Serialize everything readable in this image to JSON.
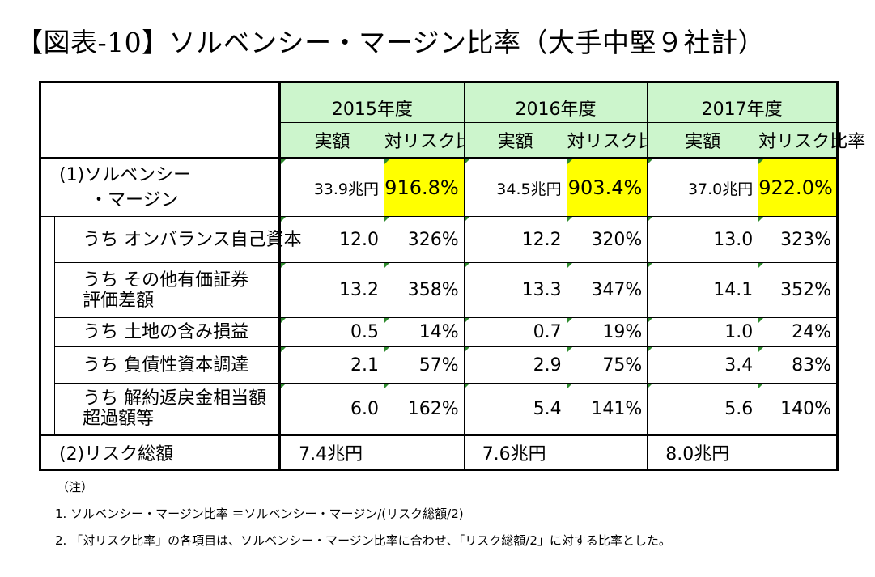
{
  "title": "【図表-10】ソルベンシー・マージン比率（大手中堅９社計）",
  "table": {
    "years": [
      "2015年度",
      "2016年度",
      "2017年度"
    ],
    "sub_headers": {
      "amount": "実額",
      "ratio": "対リスク比率"
    },
    "sm_row": {
      "label_line1": "(1)ソルベンシー",
      "label_line2": "・マージン",
      "values": [
        {
          "amount": "33.9兆円",
          "ratio": "916.8%"
        },
        {
          "amount": "34.5兆円",
          "ratio": "903.4%"
        },
        {
          "amount": "37.0兆円",
          "ratio": "922.0%"
        }
      ]
    },
    "sub_rows": [
      {
        "label_line1": "うち オンバランス自己資本",
        "label_line2": "",
        "values": [
          {
            "amount": "12.0",
            "ratio": "326%"
          },
          {
            "amount": "12.2",
            "ratio": "320%"
          },
          {
            "amount": "13.0",
            "ratio": "323%"
          }
        ]
      },
      {
        "label_line1": "うち その他有価証券",
        "label_line2": "評価差額",
        "values": [
          {
            "amount": "13.2",
            "ratio": "358%"
          },
          {
            "amount": "13.3",
            "ratio": "347%"
          },
          {
            "amount": "14.1",
            "ratio": "352%"
          }
        ]
      },
      {
        "label_line1": "うち 土地の含み損益",
        "label_line2": "",
        "values": [
          {
            "amount": "0.5",
            "ratio": "14%"
          },
          {
            "amount": "0.7",
            "ratio": "19%"
          },
          {
            "amount": "1.0",
            "ratio": "24%"
          }
        ]
      },
      {
        "label_line1": "うち 負債性資本調達",
        "label_line2": "",
        "values": [
          {
            "amount": "2.1",
            "ratio": "57%"
          },
          {
            "amount": "2.9",
            "ratio": "75%"
          },
          {
            "amount": "3.4",
            "ratio": "83%"
          }
        ]
      },
      {
        "label_line1": "うち 解約返戻金相当額",
        "label_line2": "超過額等",
        "values": [
          {
            "amount": "6.0",
            "ratio": "162%"
          },
          {
            "amount": "5.4",
            "ratio": "141%"
          },
          {
            "amount": "5.6",
            "ratio": "140%"
          }
        ]
      }
    ],
    "risk_row": {
      "label": "(2)リスク総額",
      "values": [
        "7.4兆円",
        "7.6兆円",
        "8.0兆円"
      ]
    }
  },
  "notes": {
    "heading": "（注）",
    "items": [
      "1.  ソルベンシー・マージン比率 ＝ソルベンシー・マージン/(リスク総額/2)",
      "2. 「対リスク比率」の各項目は、ソルベンシー・マージン比率に合わせ、「リスク総額/2」に対する比率とした。"
    ]
  },
  "colors": {
    "header_bg": "#ccf5cc",
    "highlight": "#ffff00",
    "corner_mark": "#2e8b2e"
  }
}
